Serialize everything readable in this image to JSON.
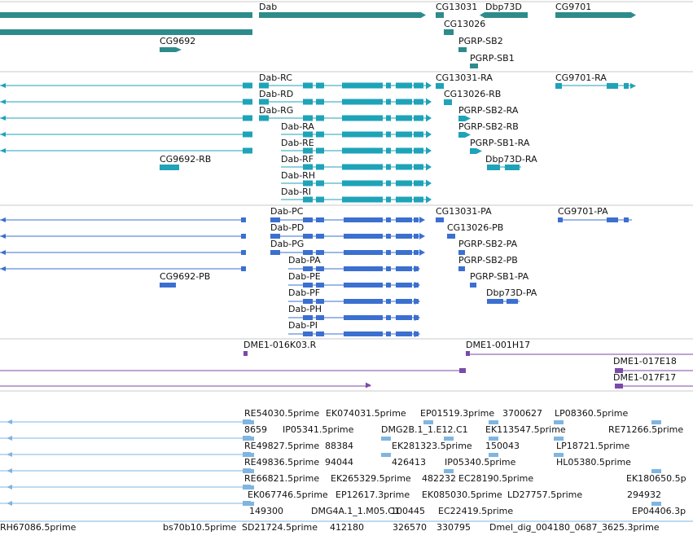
{
  "colors": {
    "gene": "#2e8b8b",
    "mrna": "#1ea3b8",
    "protein": "#3b6fd0",
    "clone": "#7a4aa8",
    "est": "#7fb5e0",
    "divider": "#c8c8c8"
  },
  "gene_track": {
    "labels": [
      "Dab",
      "CG13031",
      "Dbp73D",
      "CG9701",
      "CG13026",
      "CG9692",
      "PGRP-SB2",
      "PGRP-SB1"
    ]
  },
  "mrna_track": {
    "labels": [
      "Dab-RC",
      "CG13031-RA",
      "CG9701-RA",
      "Dab-RD",
      "CG13026-RB",
      "Dab-RG",
      "PGRP-SB2-RA",
      "Dab-RA",
      "PGRP-SB2-RB",
      "Dab-RE",
      "PGRP-SB1-RA",
      "CG9692-RB",
      "Dab-RF",
      "Dbp73D-RA",
      "Dab-RH",
      "Dab-RI"
    ]
  },
  "protein_track": {
    "labels": [
      "Dab-PC",
      "CG13031-PA",
      "CG9701-PA",
      "Dab-PD",
      "CG13026-PB",
      "Dab-PG",
      "PGRP-SB2-PA",
      "Dab-PA",
      "PGRP-SB2-PB",
      "Dab-PE",
      "PGRP-SB1-PA",
      "CG9692-PB",
      "Dab-PF",
      "Dbp73D-PA",
      "Dab-PH",
      "Dab-PI"
    ]
  },
  "clone_track": {
    "labels": [
      "DME1-016K03.R",
      "DME1-001H17",
      "DME1-017E18",
      "DME1-017F17"
    ]
  },
  "est_track": {
    "labels": [
      "RE54030.5prime",
      "EK074031.5prime",
      "EP01519.3prime",
      "3700627",
      "LP08360.5prime",
      "8659",
      "IP05341.5prime",
      "DMG2B.1_1.E12.C1",
      "EK113547.5prime",
      "RE71266.5prime",
      "RE49827.5prime",
      "88384",
      "EK281323.5prime",
      "150043",
      "LP18721.5prime",
      "RE49836.5prime",
      "94044",
      "426413",
      "IP05340.5prime",
      "HL05380.5prime",
      "RE66821.5prime",
      "EK265329.5prime",
      "482232",
      "EC28190.5prime",
      "EK180650.5p",
      "EK067746.5prime",
      "EP12617.3prime",
      "EK085030.5prime",
      "LD27757.5prime",
      "294932",
      "149300",
      "DMG4A.1_1.M05.C1",
      "100445",
      "EC22419.5prime",
      "EP04406.3p",
      "RH67086.5prime",
      "bs70b10.5prime",
      "SD21724.5prime",
      "412180",
      "326570",
      "330795",
      "Dmel_dig_004180_0687_3625.3prime"
    ]
  }
}
